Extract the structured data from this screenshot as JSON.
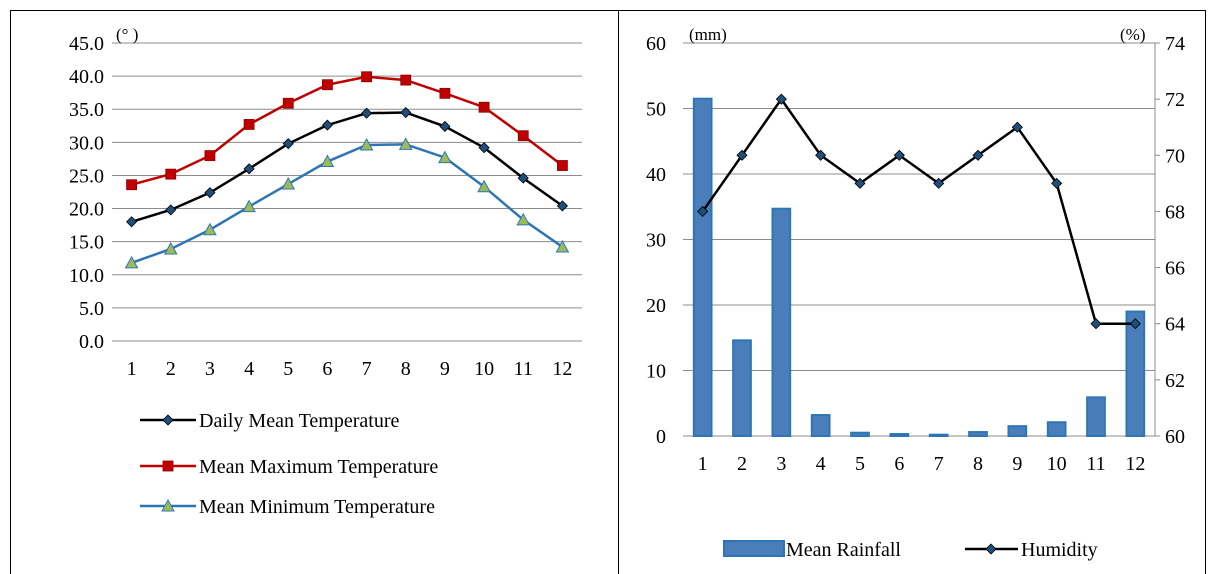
{
  "chart_data": [
    {
      "type": "line",
      "x": [
        1,
        2,
        3,
        4,
        5,
        6,
        7,
        8,
        9,
        10,
        11,
        12
      ],
      "x_tick_labels": [
        "1",
        "2",
        "3",
        "4",
        "5",
        "6",
        "7",
        "8",
        "9",
        "10",
        "11",
        "12"
      ],
      "y_tick_labels": [
        "0.0",
        "5.0",
        "10.0",
        "15.0",
        "20.0",
        "25.0",
        "30.0",
        "35.0",
        "40.0",
        "45.0"
      ],
      "ylim": [
        0,
        45
      ],
      "y_unit_label": "(°  )",
      "grid": true,
      "legend_position": "bottom",
      "series": [
        {
          "name": "Daily Mean Temperature",
          "color": "#000000",
          "marker": "diamond",
          "marker_fill": "#1f4e79",
          "values": [
            18.0,
            19.8,
            22.4,
            26.0,
            29.8,
            32.6,
            34.4,
            34.5,
            32.4,
            29.2,
            24.6,
            20.4
          ]
        },
        {
          "name": "Mean Maximum Temperature",
          "color": "#c00000",
          "marker": "square",
          "marker_fill": "#c00000",
          "values": [
            23.6,
            25.2,
            28.0,
            32.7,
            35.9,
            38.7,
            39.9,
            39.4,
            37.4,
            35.3,
            31.0,
            26.5
          ]
        },
        {
          "name": "Mean Minimum Temperature",
          "color": "#2e75b6",
          "marker": "triangle",
          "marker_fill": "#9bbb59",
          "values": [
            11.8,
            13.9,
            16.8,
            20.3,
            23.7,
            27.1,
            29.6,
            29.7,
            27.7,
            23.3,
            18.3,
            14.2
          ]
        }
      ]
    },
    {
      "type": "bar",
      "x": [
        1,
        2,
        3,
        4,
        5,
        6,
        7,
        8,
        9,
        10,
        11,
        12
      ],
      "x_tick_labels": [
        "1",
        "2",
        "3",
        "4",
        "5",
        "6",
        "7",
        "8",
        "9",
        "10",
        "11",
        "12"
      ],
      "y_left_tick_labels": [
        "0",
        "10",
        "20",
        "30",
        "40",
        "50",
        "60"
      ],
      "y_right_tick_labels": [
        "60",
        "62",
        "64",
        "66",
        "68",
        "70",
        "72",
        "74"
      ],
      "ylim_left": [
        0,
        60
      ],
      "ylim_right": [
        60,
        74
      ],
      "y_left_unit_label": "(mm)",
      "y_right_unit_label": "(%)",
      "grid": true,
      "legend_position": "bottom",
      "series": [
        {
          "name": "Mean Rainfall",
          "kind": "bar",
          "axis": "left",
          "color": "#4a7ebb",
          "edge": "#2e75b6",
          "values": [
            51.5,
            14.6,
            34.7,
            3.2,
            0.5,
            0.3,
            0.2,
            0.6,
            1.5,
            2.1,
            5.9,
            19.0
          ]
        },
        {
          "name": "Humidity",
          "kind": "line",
          "axis": "right",
          "color": "#000000",
          "marker": "diamond",
          "marker_fill": "#1f4e79",
          "values": [
            68,
            70,
            72,
            70,
            69,
            70,
            69,
            70,
            71,
            69,
            64,
            64
          ]
        }
      ]
    }
  ]
}
